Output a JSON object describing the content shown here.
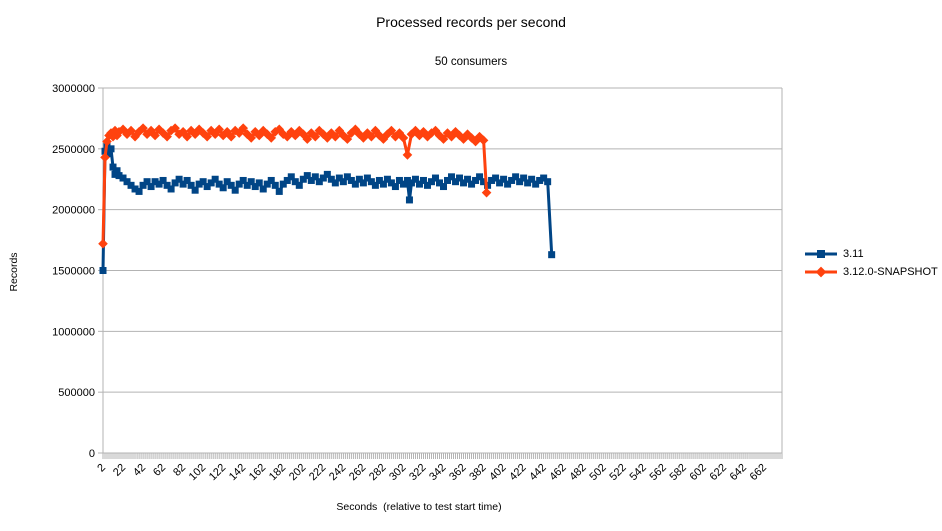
{
  "chart_data": {
    "type": "line",
    "title": "Processed records per second",
    "subtitle": "50 consumers",
    "xlabel": "Seconds  (relative to test start time)",
    "ylabel": "Records",
    "ylim": [
      0,
      3000000
    ],
    "y_ticks": [
      0,
      500000,
      1000000,
      1500000,
      2000000,
      2500000,
      3000000
    ],
    "y_tick_labels": [
      "0",
      "500000",
      "1000000",
      "1500000",
      "2000000",
      "2500000",
      "3000000"
    ],
    "x_labels": [
      2,
      22,
      42,
      62,
      82,
      102,
      122,
      142,
      162,
      182,
      202,
      222,
      242,
      262,
      282,
      302,
      322,
      342,
      362,
      382,
      402,
      422,
      442,
      462,
      482,
      502,
      522,
      542,
      562,
      582,
      602,
      622,
      642,
      662
    ],
    "x_minor_ticks": {
      "start": 2,
      "end": 680,
      "step": 2
    },
    "grid": "horizontal",
    "legend_position": "right",
    "colors": {
      "grid": "#b3b3b3",
      "axis": "#b3b3b3",
      "text": "#000000",
      "background": "#ffffff"
    },
    "series": [
      {
        "name": "3.11",
        "color": "#004586",
        "marker": "square",
        "points": [
          [
            2,
            1500000
          ],
          [
            4,
            2480000
          ],
          [
            6,
            2520000
          ],
          [
            8,
            2460000
          ],
          [
            10,
            2500000
          ],
          [
            12,
            2350000
          ],
          [
            14,
            2290000
          ],
          [
            16,
            2320000
          ],
          [
            18,
            2280000
          ],
          [
            22,
            2260000
          ],
          [
            26,
            2230000
          ],
          [
            30,
            2200000
          ],
          [
            34,
            2170000
          ],
          [
            38,
            2150000
          ],
          [
            42,
            2200000
          ],
          [
            46,
            2230000
          ],
          [
            50,
            2190000
          ],
          [
            54,
            2230000
          ],
          [
            58,
            2210000
          ],
          [
            62,
            2240000
          ],
          [
            66,
            2200000
          ],
          [
            70,
            2170000
          ],
          [
            74,
            2220000
          ],
          [
            78,
            2250000
          ],
          [
            82,
            2210000
          ],
          [
            86,
            2240000
          ],
          [
            90,
            2200000
          ],
          [
            94,
            2160000
          ],
          [
            98,
            2210000
          ],
          [
            102,
            2230000
          ],
          [
            106,
            2190000
          ],
          [
            110,
            2220000
          ],
          [
            114,
            2250000
          ],
          [
            118,
            2210000
          ],
          [
            122,
            2180000
          ],
          [
            126,
            2230000
          ],
          [
            130,
            2200000
          ],
          [
            134,
            2160000
          ],
          [
            138,
            2210000
          ],
          [
            142,
            2240000
          ],
          [
            146,
            2200000
          ],
          [
            150,
            2230000
          ],
          [
            154,
            2190000
          ],
          [
            158,
            2220000
          ],
          [
            162,
            2170000
          ],
          [
            166,
            2210000
          ],
          [
            170,
            2240000
          ],
          [
            174,
            2200000
          ],
          [
            178,
            2150000
          ],
          [
            182,
            2210000
          ],
          [
            186,
            2240000
          ],
          [
            190,
            2270000
          ],
          [
            194,
            2230000
          ],
          [
            198,
            2200000
          ],
          [
            202,
            2250000
          ],
          [
            206,
            2280000
          ],
          [
            210,
            2240000
          ],
          [
            214,
            2270000
          ],
          [
            218,
            2230000
          ],
          [
            222,
            2260000
          ],
          [
            226,
            2290000
          ],
          [
            230,
            2250000
          ],
          [
            234,
            2220000
          ],
          [
            238,
            2260000
          ],
          [
            242,
            2230000
          ],
          [
            246,
            2270000
          ],
          [
            250,
            2240000
          ],
          [
            254,
            2210000
          ],
          [
            258,
            2250000
          ],
          [
            262,
            2220000
          ],
          [
            266,
            2260000
          ],
          [
            270,
            2230000
          ],
          [
            274,
            2200000
          ],
          [
            278,
            2240000
          ],
          [
            282,
            2210000
          ],
          [
            286,
            2250000
          ],
          [
            290,
            2220000
          ],
          [
            294,
            2190000
          ],
          [
            298,
            2240000
          ],
          [
            302,
            2210000
          ],
          [
            306,
            2240000
          ],
          [
            308,
            2080000
          ],
          [
            310,
            2220000
          ],
          [
            314,
            2250000
          ],
          [
            318,
            2210000
          ],
          [
            322,
            2240000
          ],
          [
            326,
            2200000
          ],
          [
            330,
            2230000
          ],
          [
            334,
            2260000
          ],
          [
            338,
            2220000
          ],
          [
            342,
            2190000
          ],
          [
            346,
            2240000
          ],
          [
            350,
            2270000
          ],
          [
            354,
            2230000
          ],
          [
            358,
            2260000
          ],
          [
            362,
            2220000
          ],
          [
            366,
            2250000
          ],
          [
            370,
            2210000
          ],
          [
            374,
            2240000
          ],
          [
            378,
            2270000
          ],
          [
            382,
            2230000
          ],
          [
            386,
            2200000
          ],
          [
            390,
            2240000
          ],
          [
            394,
            2260000
          ],
          [
            398,
            2220000
          ],
          [
            402,
            2250000
          ],
          [
            406,
            2210000
          ],
          [
            410,
            2240000
          ],
          [
            414,
            2270000
          ],
          [
            418,
            2230000
          ],
          [
            422,
            2260000
          ],
          [
            426,
            2220000
          ],
          [
            430,
            2250000
          ],
          [
            434,
            2210000
          ],
          [
            438,
            2240000
          ],
          [
            442,
            2260000
          ],
          [
            446,
            2230000
          ],
          [
            450,
            1630000
          ]
        ]
      },
      {
        "name": "3.12.0-SNAPSHOT",
        "color": "#ff420e",
        "marker": "diamond",
        "points": [
          [
            2,
            1720000
          ],
          [
            4,
            2430000
          ],
          [
            6,
            2560000
          ],
          [
            8,
            2610000
          ],
          [
            10,
            2630000
          ],
          [
            12,
            2600000
          ],
          [
            14,
            2650000
          ],
          [
            16,
            2610000
          ],
          [
            18,
            2640000
          ],
          [
            22,
            2660000
          ],
          [
            26,
            2620000
          ],
          [
            30,
            2650000
          ],
          [
            34,
            2600000
          ],
          [
            38,
            2640000
          ],
          [
            42,
            2670000
          ],
          [
            46,
            2620000
          ],
          [
            50,
            2650000
          ],
          [
            54,
            2610000
          ],
          [
            58,
            2660000
          ],
          [
            62,
            2630000
          ],
          [
            66,
            2600000
          ],
          [
            70,
            2650000
          ],
          [
            74,
            2670000
          ],
          [
            78,
            2620000
          ],
          [
            82,
            2640000
          ],
          [
            86,
            2600000
          ],
          [
            90,
            2650000
          ],
          [
            94,
            2620000
          ],
          [
            98,
            2660000
          ],
          [
            102,
            2630000
          ],
          [
            106,
            2600000
          ],
          [
            110,
            2650000
          ],
          [
            114,
            2620000
          ],
          [
            118,
            2660000
          ],
          [
            122,
            2610000
          ],
          [
            126,
            2640000
          ],
          [
            130,
            2600000
          ],
          [
            134,
            2650000
          ],
          [
            138,
            2630000
          ],
          [
            142,
            2670000
          ],
          [
            146,
            2620000
          ],
          [
            150,
            2590000
          ],
          [
            154,
            2640000
          ],
          [
            158,
            2610000
          ],
          [
            162,
            2650000
          ],
          [
            166,
            2620000
          ],
          [
            170,
            2590000
          ],
          [
            174,
            2640000
          ],
          [
            178,
            2660000
          ],
          [
            182,
            2620000
          ],
          [
            186,
            2600000
          ],
          [
            190,
            2640000
          ],
          [
            194,
            2610000
          ],
          [
            198,
            2650000
          ],
          [
            202,
            2620000
          ],
          [
            206,
            2580000
          ],
          [
            210,
            2630000
          ],
          [
            214,
            2600000
          ],
          [
            218,
            2650000
          ],
          [
            222,
            2620000
          ],
          [
            226,
            2590000
          ],
          [
            230,
            2630000
          ],
          [
            234,
            2600000
          ],
          [
            238,
            2650000
          ],
          [
            242,
            2610000
          ],
          [
            246,
            2580000
          ],
          [
            250,
            2630000
          ],
          [
            254,
            2660000
          ],
          [
            258,
            2620000
          ],
          [
            262,
            2590000
          ],
          [
            266,
            2630000
          ],
          [
            270,
            2600000
          ],
          [
            274,
            2650000
          ],
          [
            278,
            2610000
          ],
          [
            282,
            2580000
          ],
          [
            286,
            2620000
          ],
          [
            290,
            2650000
          ],
          [
            294,
            2600000
          ],
          [
            298,
            2630000
          ],
          [
            302,
            2590000
          ],
          [
            306,
            2450000
          ],
          [
            310,
            2620000
          ],
          [
            314,
            2650000
          ],
          [
            318,
            2610000
          ],
          [
            322,
            2640000
          ],
          [
            326,
            2600000
          ],
          [
            330,
            2630000
          ],
          [
            334,
            2650000
          ],
          [
            338,
            2610000
          ],
          [
            342,
            2580000
          ],
          [
            346,
            2630000
          ],
          [
            350,
            2600000
          ],
          [
            354,
            2640000
          ],
          [
            358,
            2610000
          ],
          [
            362,
            2580000
          ],
          [
            366,
            2620000
          ],
          [
            370,
            2590000
          ],
          [
            374,
            2560000
          ],
          [
            378,
            2600000
          ],
          [
            382,
            2570000
          ],
          [
            385,
            2140000
          ]
        ]
      }
    ]
  }
}
